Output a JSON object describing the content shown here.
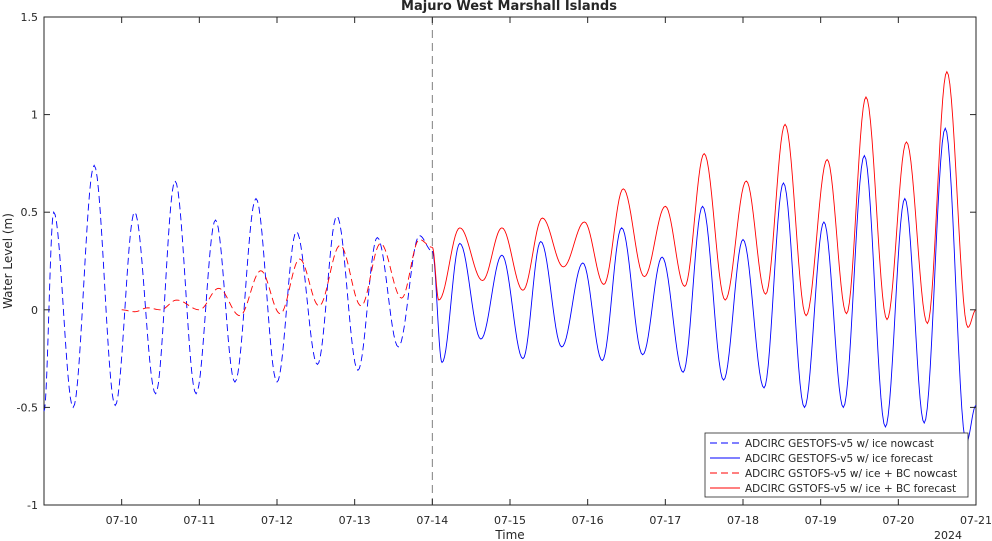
{
  "chart_data": {
    "type": "line",
    "title": "Majuro West Marshall Islands",
    "xlabel": "Time",
    "ylabel": "Water Level (m)",
    "year_label": "2024",
    "xlim": [
      "2024-07-09T00:00",
      "2024-07-21T00:00"
    ],
    "ylim": [
      -1,
      1.5
    ],
    "x_ticks": [
      "07-10",
      "07-11",
      "07-12",
      "07-13",
      "07-14",
      "07-15",
      "07-16",
      "07-17",
      "07-18",
      "07-19",
      "07-20",
      "07-21"
    ],
    "y_ticks": [
      "-1",
      "-0.5",
      "0",
      "0.5",
      "1",
      "1.5"
    ],
    "grid": false,
    "legend_position": "bottom-right",
    "nowcast_forecast_boundary": "2024-07-14T00:00",
    "series": [
      {
        "name": "ADCIRC GESTOFS-v5 w/ ice nowcast",
        "color": "#0000ff",
        "dash": "dashed",
        "points": [
          [
            "2024-07-09T00:00",
            -0.52
          ],
          [
            "2024-07-09T03:00",
            0.5
          ],
          [
            "2024-07-09T09:00",
            -0.5
          ],
          [
            "2024-07-09T15:30",
            0.74
          ],
          [
            "2024-07-09T22:00",
            -0.49
          ],
          [
            "2024-07-10T04:00",
            0.5
          ],
          [
            "2024-07-10T10:30",
            -0.43
          ],
          [
            "2024-07-10T16:30",
            0.66
          ],
          [
            "2024-07-10T23:00",
            -0.43
          ],
          [
            "2024-07-11T05:00",
            0.46
          ],
          [
            "2024-07-11T11:00",
            -0.37
          ],
          [
            "2024-07-11T17:30",
            0.57
          ],
          [
            "2024-07-12T00:00",
            -0.37
          ],
          [
            "2024-07-12T06:00",
            0.4
          ],
          [
            "2024-07-12T12:30",
            -0.28
          ],
          [
            "2024-07-12T18:30",
            0.48
          ],
          [
            "2024-07-13T01:00",
            -0.31
          ],
          [
            "2024-07-13T07:00",
            0.37
          ],
          [
            "2024-07-13T13:30",
            -0.19
          ],
          [
            "2024-07-13T20:00",
            0.38
          ],
          [
            "2024-07-14T00:00",
            0.3
          ]
        ]
      },
      {
        "name": "ADCIRC GESTOFS-v5 w/ ice forecast",
        "color": "#0000ff",
        "dash": "solid",
        "points": [
          [
            "2024-07-14T00:00",
            0.3
          ],
          [
            "2024-07-14T03:00",
            -0.27
          ],
          [
            "2024-07-14T08:30",
            0.34
          ],
          [
            "2024-07-14T15:00",
            -0.15
          ],
          [
            "2024-07-14T21:30",
            0.28
          ],
          [
            "2024-07-15T04:00",
            -0.25
          ],
          [
            "2024-07-15T09:30",
            0.35
          ],
          [
            "2024-07-15T16:00",
            -0.19
          ],
          [
            "2024-07-15T22:30",
            0.24
          ],
          [
            "2024-07-16T04:30",
            -0.26
          ],
          [
            "2024-07-16T10:30",
            0.42
          ],
          [
            "2024-07-16T17:00",
            -0.23
          ],
          [
            "2024-07-16T23:00",
            0.27
          ],
          [
            "2024-07-17T05:30",
            -0.32
          ],
          [
            "2024-07-17T11:30",
            0.53
          ],
          [
            "2024-07-17T18:00",
            -0.36
          ],
          [
            "2024-07-18T00:00",
            0.36
          ],
          [
            "2024-07-18T06:30",
            -0.4
          ],
          [
            "2024-07-18T12:30",
            0.65
          ],
          [
            "2024-07-18T19:00",
            -0.5
          ],
          [
            "2024-07-19T01:00",
            0.45
          ],
          [
            "2024-07-19T07:00",
            -0.5
          ],
          [
            "2024-07-19T13:30",
            0.79
          ],
          [
            "2024-07-19T20:00",
            -0.6
          ],
          [
            "2024-07-20T02:00",
            0.57
          ],
          [
            "2024-07-20T08:00",
            -0.58
          ],
          [
            "2024-07-20T14:30",
            0.93
          ],
          [
            "2024-07-20T21:00",
            -0.68
          ],
          [
            "2024-07-21T00:00",
            -0.49
          ]
        ]
      },
      {
        "name": "ADCIRC GSTOFS-v5 w/ ice + BC nowcast",
        "color": "#ff0000",
        "dash": "dashed",
        "points": [
          [
            "2024-07-10T00:00",
            0.0
          ],
          [
            "2024-07-10T04:00",
            -0.01
          ],
          [
            "2024-07-10T08:00",
            0.01
          ],
          [
            "2024-07-10T12:00",
            0.0
          ],
          [
            "2024-07-10T17:00",
            0.05
          ],
          [
            "2024-07-11T00:00",
            0.0
          ],
          [
            "2024-07-11T06:00",
            0.11
          ],
          [
            "2024-07-11T12:30",
            -0.03
          ],
          [
            "2024-07-11T19:00",
            0.2
          ],
          [
            "2024-07-12T01:00",
            -0.02
          ],
          [
            "2024-07-12T07:00",
            0.26
          ],
          [
            "2024-07-12T13:00",
            0.02
          ],
          [
            "2024-07-12T19:30",
            0.33
          ],
          [
            "2024-07-13T02:00",
            0.02
          ],
          [
            "2024-07-13T08:00",
            0.34
          ],
          [
            "2024-07-13T14:30",
            0.06
          ],
          [
            "2024-07-13T20:00",
            0.36
          ],
          [
            "2024-07-14T00:00",
            0.32
          ]
        ]
      },
      {
        "name": "ADCIRC GSTOFS-v5 w/ ice + BC forecast",
        "color": "#ff0000",
        "dash": "solid",
        "points": [
          [
            "2024-07-14T00:00",
            0.32
          ],
          [
            "2024-07-14T02:00",
            0.05
          ],
          [
            "2024-07-14T08:30",
            0.42
          ],
          [
            "2024-07-14T15:30",
            0.15
          ],
          [
            "2024-07-14T21:30",
            0.42
          ],
          [
            "2024-07-15T04:00",
            0.1
          ],
          [
            "2024-07-15T10:00",
            0.47
          ],
          [
            "2024-07-15T16:30",
            0.22
          ],
          [
            "2024-07-15T23:00",
            0.45
          ],
          [
            "2024-07-16T05:00",
            0.13
          ],
          [
            "2024-07-16T11:00",
            0.62
          ],
          [
            "2024-07-16T17:30",
            0.17
          ],
          [
            "2024-07-17T00:00",
            0.53
          ],
          [
            "2024-07-17T06:00",
            0.12
          ],
          [
            "2024-07-17T12:00",
            0.8
          ],
          [
            "2024-07-17T18:30",
            0.05
          ],
          [
            "2024-07-18T01:00",
            0.66
          ],
          [
            "2024-07-18T07:00",
            0.08
          ],
          [
            "2024-07-18T13:00",
            0.95
          ],
          [
            "2024-07-18T19:30",
            -0.03
          ],
          [
            "2024-07-19T02:00",
            0.77
          ],
          [
            "2024-07-19T08:00",
            -0.02
          ],
          [
            "2024-07-19T14:00",
            1.09
          ],
          [
            "2024-07-19T20:30",
            -0.05
          ],
          [
            "2024-07-20T02:30",
            0.86
          ],
          [
            "2024-07-20T09:00",
            -0.07
          ],
          [
            "2024-07-20T15:00",
            1.22
          ],
          [
            "2024-07-20T21:30",
            -0.09
          ],
          [
            "2024-07-21T00:00",
            0.0
          ]
        ]
      }
    ]
  }
}
